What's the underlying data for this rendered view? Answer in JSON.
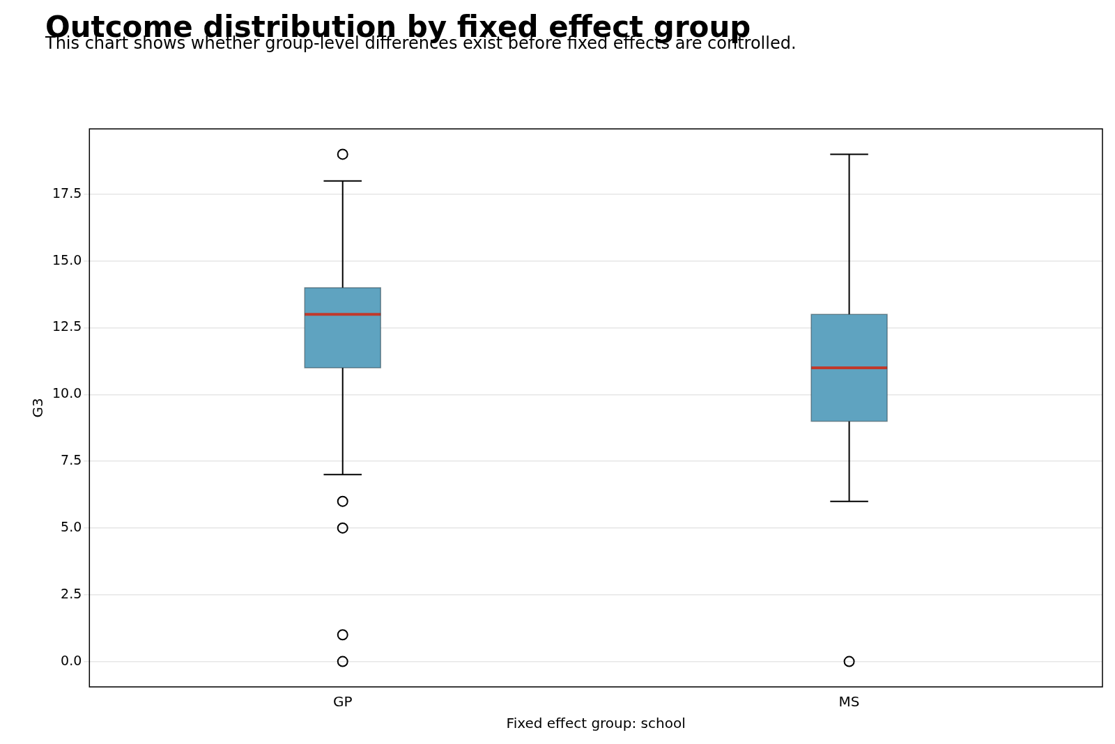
{
  "chart_data": {
    "type": "box",
    "title": "Outcome distribution by fixed effect group",
    "subtitle": "This chart shows whether group-level differences exist before fixed effects are controlled.",
    "xlabel": "Fixed effect group: school",
    "ylabel": "G3",
    "categories": [
      "GP",
      "MS"
    ],
    "boxes": [
      {
        "low": 7,
        "q1": 11,
        "median": 13,
        "q3": 14,
        "high": 18,
        "outliers": [
          19,
          6,
          5,
          1,
          0
        ]
      },
      {
        "low": 6,
        "q1": 9,
        "median": 11,
        "q3": 13,
        "high": 19,
        "outliers": [
          0
        ]
      }
    ],
    "color": "#5fa3c0",
    "ylim": [
      -0.95,
      19.95
    ],
    "yticks": [
      {
        "value": 0,
        "label": "0.0"
      },
      {
        "value": 2.5,
        "label": "2.5"
      },
      {
        "value": 5,
        "label": "5.0"
      },
      {
        "value": 7.5,
        "label": "7.5"
      },
      {
        "value": 10,
        "label": "10.0"
      },
      {
        "value": 12.5,
        "label": "12.5"
      },
      {
        "value": 15,
        "label": "15.0"
      },
      {
        "value": 17.5,
        "label": "17.5"
      }
    ],
    "grid": "y",
    "legend": false
  }
}
